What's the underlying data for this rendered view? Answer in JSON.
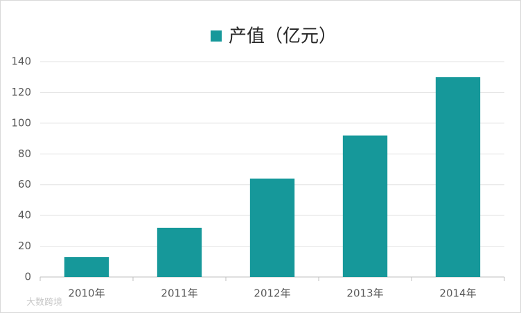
{
  "chart_data": {
    "type": "bar",
    "categories": [
      "2010年",
      "2011年",
      "2012年",
      "2013年",
      "2014年"
    ],
    "series": [
      {
        "name": "产值（亿元）",
        "color": "#16989a",
        "values": [
          13,
          32,
          64,
          92,
          130
        ]
      }
    ],
    "ylim": [
      0,
      140
    ],
    "yticks": [
      0,
      20,
      40,
      60,
      80,
      100,
      120,
      140
    ],
    "grid": true,
    "legend": "top",
    "watermark": "大数跨境"
  }
}
